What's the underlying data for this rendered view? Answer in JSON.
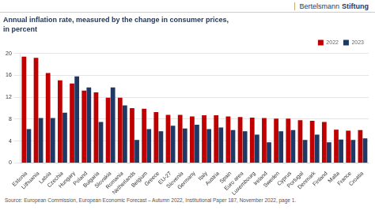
{
  "chart_data": {
    "type": "bar",
    "title": "Annual inflation rate, measured by the change in consumer prices,",
    "subtitle": "in percent",
    "annotations": [
      "Bertelsmann",
      "Stiftung",
      "Source: European Commission, European Economic Forecast – Autumn 2022, Institutional Paper 187, November 2022, page 1."
    ],
    "categories": [
      "Estonia",
      "Lithuania",
      "Latvia",
      "Czechia",
      "Hungary",
      "Poland",
      "Bulgaria",
      "Slovakia",
      "Romania",
      "Netherlands",
      "Belgium",
      "Greece",
      "EU-27",
      "Slovenia",
      "Germany",
      "Italy",
      "Austria",
      "Spain",
      "Euro area",
      "Luxembourg",
      "Ireland",
      "Sweden",
      "Cyprus",
      "Portugal",
      "Denmark",
      "Finland",
      "Malta",
      "France",
      "Croatia"
    ],
    "series": [
      {
        "name": "2022",
        "color": "#c00000",
        "values": [
          19.4,
          19.2,
          16.4,
          15.1,
          14.5,
          13.2,
          12.9,
          11.9,
          11.9,
          10.0,
          9.9,
          9.3,
          8.8,
          8.8,
          8.5,
          8.7,
          8.7,
          8.5,
          8.4,
          8.3,
          8.2,
          8.1,
          8.1,
          7.8,
          7.7,
          7.5,
          6.1,
          5.9,
          6.0
        ]
      },
      {
        "name": "2023",
        "color": "#1f3864",
        "values": [
          6.2,
          8.2,
          8.2,
          9.2,
          15.8,
          13.8,
          7.5,
          13.8,
          10.5,
          4.2,
          6.2,
          5.8,
          6.8,
          6.3,
          7.0,
          6.2,
          6.5,
          6.0,
          5.8,
          5.2,
          3.8,
          5.8,
          6.0,
          4.2,
          5.2,
          3.8,
          4.3,
          4.2,
          4.5
        ]
      }
    ],
    "ylim": [
      0,
      20
    ],
    "yticks": [
      0,
      4,
      8,
      12,
      16,
      20
    ],
    "grid": true,
    "legend": "upper right"
  }
}
